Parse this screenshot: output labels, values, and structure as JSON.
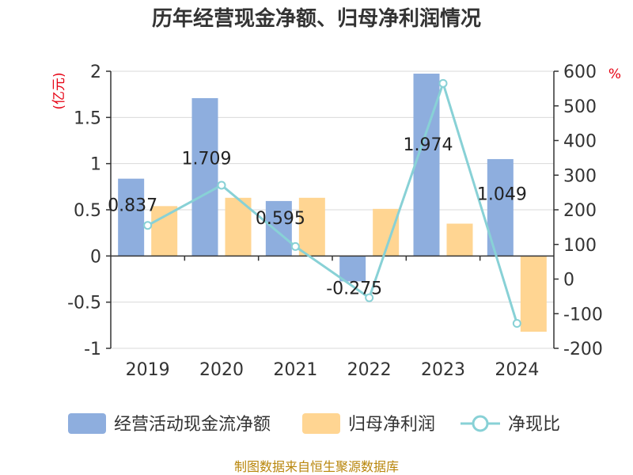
{
  "title": "历年经营现金净额、归母净利润情况",
  "source": "制图数据来自恒生聚源数据库",
  "chart_data": {
    "type": "bar",
    "categories": [
      "2019",
      "2020",
      "2021",
      "2022",
      "2023",
      "2024"
    ],
    "series": [
      {
        "name": "经营活动现金流净额",
        "type": "bar",
        "axis": "left",
        "color": "#8eaede",
        "values": [
          0.837,
          1.709,
          0.595,
          -0.275,
          1.974,
          1.049
        ],
        "data_labels": [
          "0.837",
          "1.709",
          "0.595",
          "-0.275",
          "1.974",
          "1.049"
        ]
      },
      {
        "name": "归母净利润",
        "type": "bar",
        "axis": "left",
        "color": "#ffd592",
        "values": [
          0.54,
          0.63,
          0.63,
          0.51,
          0.35,
          -0.82
        ]
      },
      {
        "name": "净现比",
        "type": "line",
        "axis": "right",
        "color": "#88d1d6",
        "values": [
          155,
          271,
          94,
          -54,
          565,
          -128
        ]
      }
    ],
    "y_left": {
      "unit": "(亿元)",
      "min": -1,
      "max": 2,
      "ticks": [
        2,
        1.5,
        1,
        0.5,
        0,
        -0.5,
        -1
      ],
      "tick_labels": [
        "2",
        "1.5",
        "1",
        "0.5",
        "0",
        "-0.5",
        "-1"
      ]
    },
    "y_right": {
      "unit": "%",
      "min": -200,
      "max": 600,
      "ticks": [
        600,
        500,
        400,
        300,
        200,
        100,
        0,
        -100,
        -200
      ],
      "tick_labels": [
        "600",
        "500",
        "400",
        "300",
        "200",
        "100",
        "0",
        "-100",
        "-200"
      ]
    },
    "grid": true,
    "legend_position": "bottom"
  }
}
